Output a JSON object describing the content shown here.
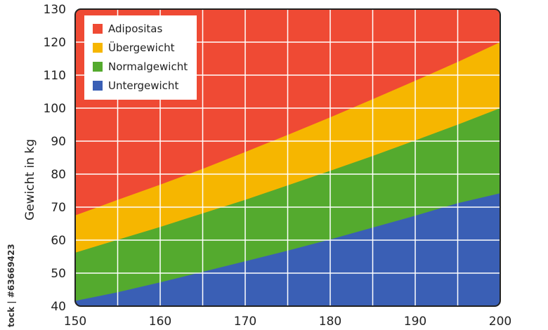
{
  "chart_data": {
    "type": "area",
    "title": "",
    "xlabel": "",
    "ylabel": "Gewicht in kg",
    "xlim": [
      150,
      200
    ],
    "ylim": [
      40,
      130
    ],
    "x_ticks": [
      150,
      160,
      170,
      180,
      190,
      200
    ],
    "y_ticks": [
      40,
      50,
      60,
      70,
      80,
      90,
      100,
      110,
      120,
      130
    ],
    "x_grid_step": 5,
    "grid": true,
    "legend_position": "top-left",
    "series": [
      {
        "name": "Untergewicht",
        "color": "#3a5fb5",
        "x": [
          150,
          155,
          160,
          165,
          170,
          175,
          180,
          185,
          190,
          195,
          200
        ],
        "upper": [
          41.6,
          44.2,
          47.2,
          50.4,
          53.6,
          56.8,
          60.2,
          63.8,
          67.4,
          71.2,
          74.2
        ]
      },
      {
        "name": "Normalgewicht",
        "color": "#54aa2e",
        "x": [
          150,
          155,
          160,
          165,
          170,
          175,
          180,
          185,
          190,
          195,
          200
        ],
        "upper": [
          56.2,
          60.1,
          64.0,
          68.1,
          72.2,
          76.6,
          81.0,
          85.5,
          90.2,
          95.0,
          100.0
        ]
      },
      {
        "name": "Übergewicht",
        "color": "#f6b600",
        "x": [
          150,
          155,
          160,
          165,
          170,
          175,
          180,
          185,
          190,
          195,
          200
        ],
        "upper": [
          67.5,
          72.2,
          76.8,
          81.6,
          86.7,
          91.9,
          97.2,
          102.7,
          108.3,
          114.0,
          120.0
        ]
      },
      {
        "name": "Adipositas",
        "color": "#ef4a34",
        "x": [
          150,
          200
        ],
        "upper": [
          130,
          130
        ]
      }
    ],
    "legend": [
      "Adipositas",
      "Übergewicht",
      "Normalgewicht",
      "Untergewicht"
    ]
  },
  "credit_text": "tock | #63669423"
}
